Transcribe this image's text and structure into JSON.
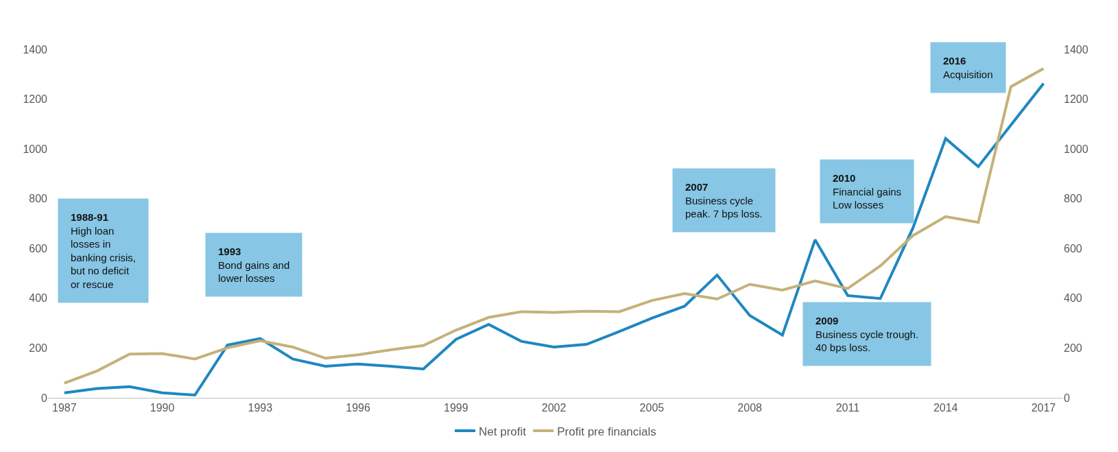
{
  "chart_data": {
    "type": "line",
    "x": [
      1987,
      1988,
      1989,
      1990,
      1991,
      1992,
      1993,
      1994,
      1995,
      1996,
      1997,
      1998,
      1999,
      2000,
      2001,
      2002,
      2003,
      2004,
      2005,
      2006,
      2007,
      2008,
      2009,
      2010,
      2011,
      2012,
      2013,
      2014,
      2015,
      2016,
      2017
    ],
    "series": [
      {
        "name": "Net profit",
        "color": "#1f87c1",
        "values": [
          20,
          37,
          45,
          20,
          11,
          212,
          238,
          156,
          127,
          136,
          127,
          116,
          235,
          295,
          227,
          204,
          215,
          266,
          320,
          368,
          493,
          331,
          252,
          635,
          411,
          399,
          683,
          1042,
          929,
          1096,
          1263
        ]
      },
      {
        "name": "Profit pre financials",
        "color": "#c4b27a",
        "values": [
          59,
          108,
          176,
          178,
          156,
          201,
          229,
          204,
          159,
          173,
          193,
          210,
          272,
          323,
          346,
          343,
          348,
          346,
          391,
          419,
          397,
          456,
          433,
          470,
          439,
          530,
          652,
          728,
          705,
          1250,
          1323
        ]
      }
    ],
    "xlim": [
      1986.5,
      2017.6
    ],
    "xticks": [
      1987,
      1990,
      1993,
      1996,
      1999,
      2002,
      2005,
      2008,
      2011,
      2014,
      2017
    ],
    "ylim": [
      0,
      1400
    ],
    "yticks": [
      0,
      200,
      400,
      600,
      800,
      1000,
      1200,
      1400
    ],
    "y2lim": [
      0,
      1400
    ],
    "y2ticks": [
      0,
      200,
      400,
      600,
      800,
      1000,
      1200,
      1400
    ],
    "annotations": [
      "1988-91\nHigh loan\nlosses in\nbanking crisis,\nbut no deficit\nor rescue",
      "1993\nBond gains and\nlower losses",
      "2007\nBusiness cycle\npeak. 7 bps loss.",
      "2009\nBusiness cycle trough.\n40 bps loss.",
      "2010\nFinancial gains\nLow losses",
      "2016\nAcquisition"
    ],
    "legend": "bottom",
    "marker": "none",
    "line_style": "solid"
  }
}
